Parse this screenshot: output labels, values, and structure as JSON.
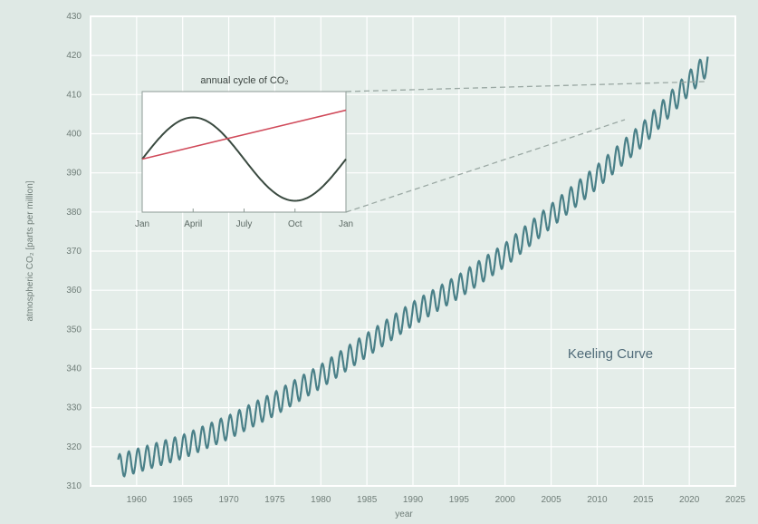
{
  "chart_data": [
    {
      "type": "line",
      "title": "",
      "xlabel": "year",
      "ylabel": "atmospheric CO₂ [parts per million]",
      "xlim": [
        1955,
        2025
      ],
      "ylim": [
        310,
        430
      ],
      "x_ticks": [
        "1960",
        "1965",
        "1970",
        "1975",
        "1980",
        "1985",
        "1990",
        "1995",
        "2000",
        "2005",
        "2010",
        "2015",
        "2020",
        "2025"
      ],
      "y_ticks": [
        310,
        320,
        330,
        340,
        350,
        360,
        370,
        380,
        390,
        400,
        410,
        420,
        430
      ],
      "grid": true,
      "annotation": "Keeling Curve",
      "series": [
        {
          "color": "#4a8088",
          "seasonal_amplitude_ppm": 3,
          "trend_points": [
            {
              "x": 1958,
              "y": 315
            },
            {
              "x": 1965,
              "y": 320
            },
            {
              "x": 1970,
              "y": 325
            },
            {
              "x": 1975,
              "y": 331
            },
            {
              "x": 1980,
              "y": 338
            },
            {
              "x": 1985,
              "y": 346
            },
            {
              "x": 1990,
              "y": 354
            },
            {
              "x": 1995,
              "y": 361
            },
            {
              "x": 2000,
              "y": 369
            },
            {
              "x": 2005,
              "y": 379
            },
            {
              "x": 2010,
              "y": 389
            },
            {
              "x": 2015,
              "y": 400
            },
            {
              "x": 2020,
              "y": 413
            },
            {
              "x": 2022,
              "y": 418
            }
          ]
        }
      ]
    },
    {
      "type": "line",
      "title": "annual cycle of CO₂",
      "categories": [
        "Jan",
        "April",
        "July",
        "Oct",
        "Jan"
      ],
      "series": [
        {
          "color": "#3a4a40",
          "values": [
            0,
            1,
            0,
            -1,
            0
          ],
          "shape": "sine"
        },
        {
          "color": "#d04a5a",
          "values": [
            0,
            0.25,
            0.5,
            0.75,
            1
          ],
          "shape": "linear"
        }
      ]
    }
  ]
}
